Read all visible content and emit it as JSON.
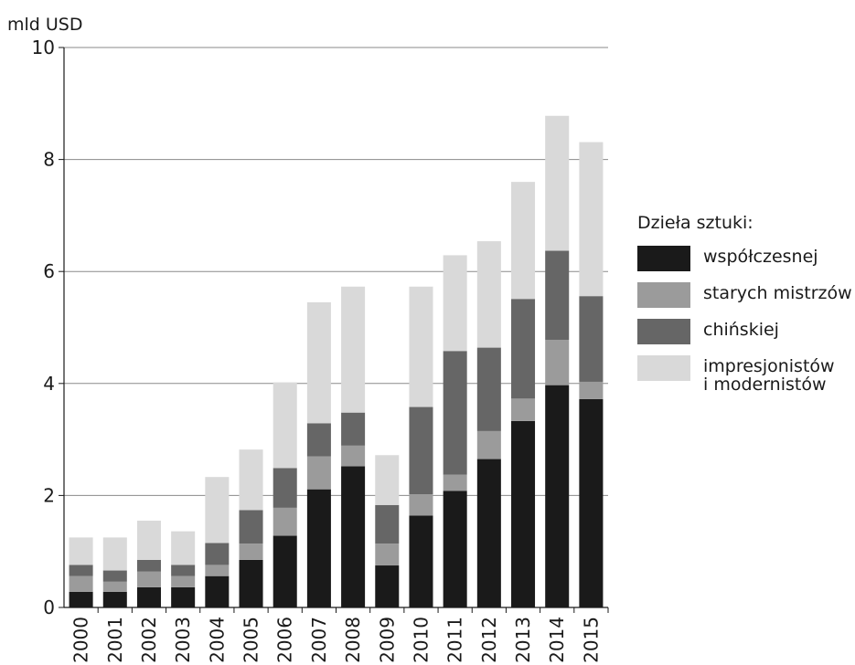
{
  "chart_data": {
    "type": "bar",
    "stacked": true,
    "ylabel": "mld USD",
    "ylim": [
      0,
      10
    ],
    "yticks": [
      0,
      2,
      4,
      6,
      8,
      10
    ],
    "grid": true,
    "legend_position": "right",
    "legend_title": "Dzieła sztuki:",
    "categories": [
      "2000",
      "2001",
      "2002",
      "2003",
      "2004",
      "2005",
      "2006",
      "2007",
      "2008",
      "2009",
      "2010",
      "2011",
      "2012",
      "2013",
      "2014",
      "2015"
    ],
    "series": [
      {
        "name": "współczesnej",
        "color": "#1a1a1a",
        "values": [
          0.28,
          0.28,
          0.36,
          0.36,
          0.56,
          0.85,
          1.28,
          2.11,
          2.52,
          0.75,
          1.64,
          2.08,
          2.65,
          3.33,
          3.97,
          3.72
        ]
      },
      {
        "name": "starych mistrzów",
        "color": "#9b9b9b",
        "values": [
          0.28,
          0.18,
          0.28,
          0.2,
          0.2,
          0.29,
          0.5,
          0.59,
          0.37,
          0.39,
          0.38,
          0.29,
          0.5,
          0.4,
          0.81,
          0.31
        ]
      },
      {
        "name": "chińskiej",
        "color": "#666666",
        "values": [
          0.2,
          0.2,
          0.21,
          0.2,
          0.39,
          0.6,
          0.71,
          0.59,
          0.59,
          0.69,
          1.56,
          2.21,
          1.49,
          1.78,
          1.59,
          1.53
        ]
      },
      {
        "name": "impresjonistów\ni modernistów",
        "color": "#d9d9d9",
        "values": [
          0.49,
          0.59,
          0.7,
          0.6,
          1.18,
          1.08,
          1.53,
          2.16,
          2.25,
          0.89,
          2.15,
          1.71,
          1.9,
          2.09,
          2.41,
          2.75
        ]
      }
    ]
  }
}
